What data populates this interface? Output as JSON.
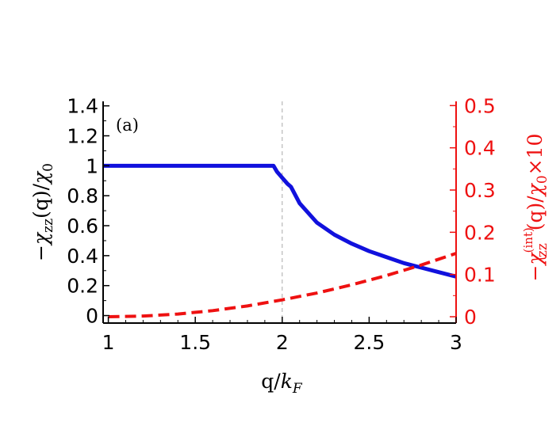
{
  "chart_data": {
    "type": "line",
    "panel_label": "(a)",
    "xlabel": "q/k_F",
    "xlabel_parts": {
      "main": "q/",
      "sym": "k",
      "sub": "F"
    },
    "ylabel_left": "−χzz(q)/χ0",
    "ylabel_left_parts": {
      "neg": "−",
      "chi": "χ",
      "sub": "zz",
      "mid": "(q)/",
      "chi2": "χ",
      "sub2": "0"
    },
    "ylabel_right": "−χzz(int)(q)/χ0×10",
    "ylabel_right_parts": {
      "neg": "−",
      "chi": "χ",
      "sup": "(int)",
      "sub": "zz",
      "mid": "(q)/",
      "chi2": "χ",
      "sub2": "0",
      "tail": "×10"
    },
    "xlim": [
      0.97,
      3.0
    ],
    "ylim_left": [
      -0.05,
      1.43
    ],
    "ylim_right": [
      -0.015,
      0.51
    ],
    "xticks": [
      1,
      1.5,
      2,
      2.5,
      3
    ],
    "xtick_labels": [
      "1",
      "1.5",
      "2",
      "2.5",
      "3"
    ],
    "yticks_left": [
      0,
      0.2,
      0.4,
      0.6,
      0.8,
      1,
      1.2,
      1.4
    ],
    "ytick_labels_left": [
      "0",
      "0.2",
      "0.4",
      "0.6",
      "0.8",
      "1",
      "1.2",
      "1.4"
    ],
    "yticks_right": [
      0,
      0.1,
      0.2,
      0.3,
      0.4,
      0.5
    ],
    "ytick_labels_right": [
      "0",
      "0.1",
      "0.2",
      "0.3",
      "0.4",
      "0.5"
    ],
    "reference_line_x": 2,
    "colors": {
      "left_axis": "#000000",
      "right_axis": "#ee1111",
      "solid": "#1111dd",
      "dashed_blue": "#1111dd",
      "dashed_red": "#ee1111",
      "reference": "#aaaaaa"
    },
    "series": [
      {
        "axis": "left",
        "style": "solid",
        "x": [
          0.97,
          1.2,
          1.5,
          1.8,
          1.95,
          1.97,
          2.0,
          2.03,
          2.05,
          2.1,
          2.2,
          2.3,
          2.4,
          2.5,
          2.6,
          2.7,
          2.8,
          2.9,
          3.0
        ],
        "y": [
          1.0,
          1.0,
          1.0,
          1.0,
          1.0,
          0.96,
          0.92,
          0.88,
          0.86,
          0.75,
          0.62,
          0.54,
          0.48,
          0.43,
          0.39,
          0.35,
          0.32,
          0.29,
          0.26
        ]
      },
      {
        "axis": "left",
        "style": "dashed",
        "x": [
          0.97,
          1.2,
          1.5,
          1.8,
          1.95,
          1.97,
          2.0,
          2.03,
          2.05,
          2.1,
          2.2,
          2.3,
          2.4,
          2.5,
          2.6,
          2.7,
          2.8,
          2.9,
          3.0
        ],
        "y": [
          0.995,
          0.995,
          0.995,
          0.995,
          0.995,
          0.955,
          0.915,
          0.875,
          0.855,
          0.745,
          0.615,
          0.535,
          0.475,
          0.425,
          0.385,
          0.345,
          0.315,
          0.285,
          0.255
        ]
      },
      {
        "axis": "right",
        "style": "dashed",
        "x": [
          1.0,
          1.2,
          1.4,
          1.6,
          1.8,
          2.0,
          2.2,
          2.4,
          2.6,
          2.8,
          3.0
        ],
        "y": [
          0.0,
          0.0016,
          0.0064,
          0.0144,
          0.0256,
          0.04,
          0.0562,
          0.0756,
          0.0976,
          0.1225,
          0.15
        ]
      }
    ]
  }
}
